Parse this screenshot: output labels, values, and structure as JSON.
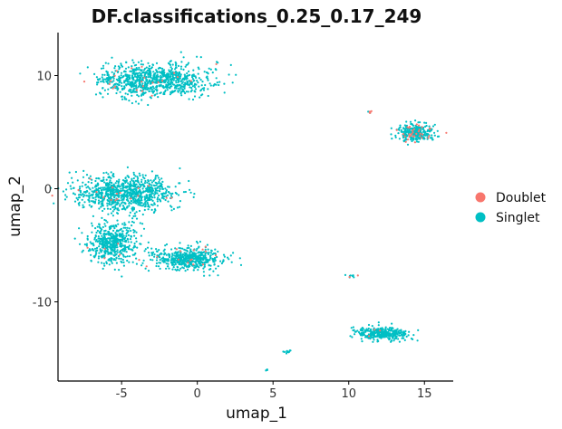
{
  "chart_data": {
    "type": "scatter",
    "title": "DF.classifications_0.25_0.17_249",
    "xlabel": "umap_1",
    "ylabel": "umap_2",
    "xlim": [
      -9.2,
      16.9
    ],
    "ylim": [
      -17.0,
      13.8
    ],
    "x_ticks": [
      -5,
      0,
      5,
      10,
      15
    ],
    "x_tick_labels": [
      "-5",
      "0",
      "5",
      "10",
      "15"
    ],
    "y_ticks": [
      -10,
      0,
      10
    ],
    "y_tick_labels": [
      "-10",
      "0",
      "10"
    ],
    "grid": false,
    "legend_position": "right",
    "legend_title": "",
    "series": [
      {
        "name": "Doublet",
        "color": "#F8766D"
      },
      {
        "name": "Singlet",
        "color": "#00BFC4"
      }
    ],
    "clusters": [
      {
        "label": "top-left cluster",
        "center": [
          -2.8,
          9.6
        ],
        "spread": [
          3.4,
          1.3
        ],
        "approx_points": 900,
        "doublet_fraction": 0.03
      },
      {
        "label": "middle-left upper lobe",
        "center": [
          -4.8,
          -0.4
        ],
        "spread": [
          2.9,
          1.4
        ],
        "approx_points": 900,
        "doublet_fraction": 0.02
      },
      {
        "label": "middle-left lower lobe",
        "center": [
          -5.6,
          -4.8
        ],
        "spread": [
          1.4,
          1.6
        ],
        "approx_points": 500,
        "doublet_fraction": 0.02
      },
      {
        "label": "middle arm",
        "center": [
          -0.6,
          -6.2
        ],
        "spread": [
          2.1,
          0.9
        ],
        "approx_points": 500,
        "doublet_fraction": 0.03
      },
      {
        "label": "right cluster",
        "center": [
          14.4,
          4.9
        ],
        "spread": [
          1.1,
          0.7
        ],
        "approx_points": 300,
        "doublet_fraction": 0.12
      },
      {
        "label": "bottom-right cluster",
        "center": [
          12.1,
          -12.8
        ],
        "spread": [
          1.4,
          0.5
        ],
        "approx_points": 350,
        "doublet_fraction": 0.01
      },
      {
        "label": "small group near (10,-7.6)",
        "center": [
          10.2,
          -7.7
        ],
        "spread": [
          0.4,
          0.15
        ],
        "approx_points": 10,
        "doublet_fraction": 0.3
      },
      {
        "label": "small group near (11.4,6.7)",
        "center": [
          11.4,
          6.8
        ],
        "spread": [
          0.15,
          0.15
        ],
        "approx_points": 8,
        "doublet_fraction": 0.5
      },
      {
        "label": "small group near (6,-14.4)",
        "center": [
          6.0,
          -14.4
        ],
        "spread": [
          0.3,
          0.15
        ],
        "approx_points": 14,
        "doublet_fraction": 0.0
      },
      {
        "label": "small group near (4.6,-16)",
        "center": [
          4.6,
          -16.0
        ],
        "spread": [
          0.1,
          0.1
        ],
        "approx_points": 4,
        "doublet_fraction": 0.0
      }
    ]
  }
}
